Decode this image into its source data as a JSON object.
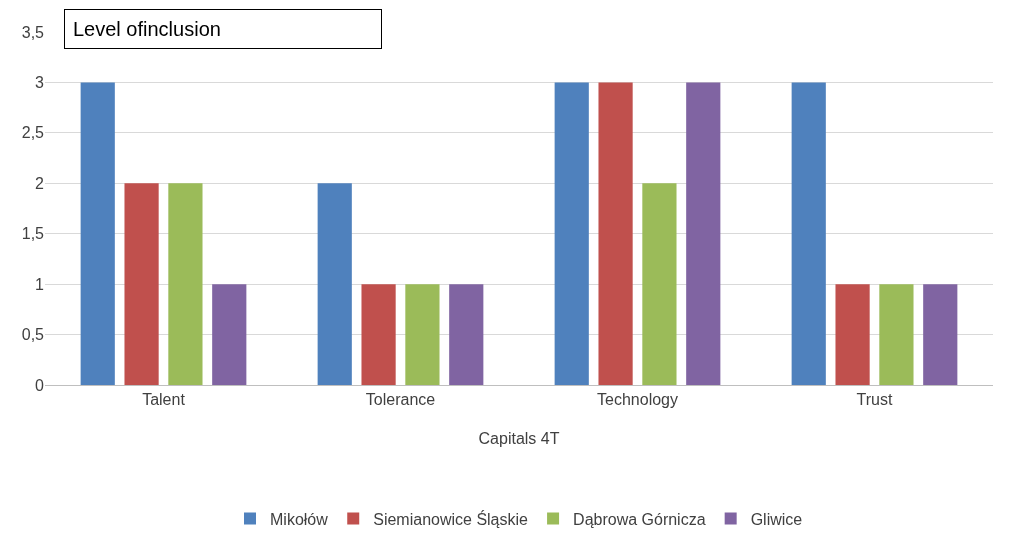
{
  "chart_data": {
    "type": "bar",
    "title": "Level ofinclusion",
    "xlabel": "Capitals 4T",
    "categories": [
      "Talent",
      "Tolerance",
      "Technology",
      "Trust"
    ],
    "series": [
      {
        "name": "Mikołów",
        "color": "#4f81bd",
        "values": [
          3,
          2,
          3,
          3
        ]
      },
      {
        "name": "Siemianowice Śląskie",
        "color": "#c0504d",
        "values": [
          2,
          1,
          3,
          1
        ]
      },
      {
        "name": "Dąbrowa Górnicza",
        "color": "#9bbb59",
        "values": [
          2,
          1,
          2,
          1
        ]
      },
      {
        "name": "Gliwice",
        "color": "#8064a2",
        "values": [
          1,
          1,
          3,
          1
        ]
      }
    ],
    "ylim": [
      0,
      3.5
    ],
    "yticks": [
      0,
      {
        "value": 0.5,
        "label": "0,5"
      },
      1,
      {
        "value": 1.5,
        "label": "1,5"
      },
      2,
      {
        "value": 2.5,
        "label": "2,5"
      },
      3,
      {
        "value": 3.5,
        "label": "3,5"
      }
    ],
    "grid": "y",
    "legend": "bottom"
  }
}
